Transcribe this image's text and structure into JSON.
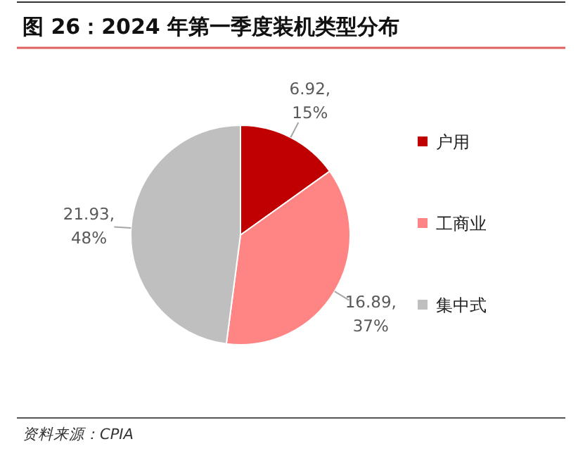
{
  "chart_data": {
    "type": "pie",
    "title": "图 26：2024 年第一季度装机类型分布",
    "categories": [
      "户用",
      "工商业",
      "集中式"
    ],
    "values": [
      6.92,
      16.89,
      21.93
    ],
    "value_labels": [
      "6.92,\n15%",
      "16.89,\n37%",
      "21.93,\n48%"
    ],
    "colors": [
      "#c00000",
      "#ff8585",
      "#bfbfbf"
    ],
    "legend": "right",
    "annotations": [
      "资料来源：CPIA"
    ]
  }
}
